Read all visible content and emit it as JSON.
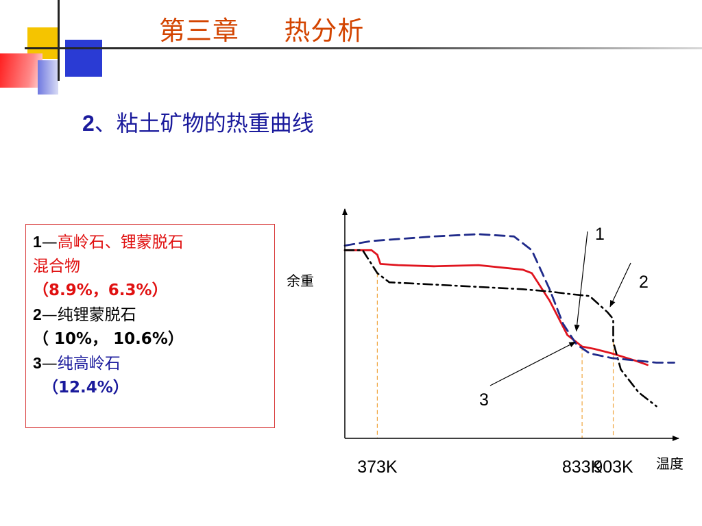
{
  "slide": {
    "title": "第三章     热分析",
    "section_number": "2",
    "section_title": "、粘土矿物的热重曲线"
  },
  "legend": [
    {
      "num": "1",
      "dash": "—",
      "name": "高岭石、锂蒙脱石",
      "name2": "混合物",
      "values": "（8.9%，6.3%）",
      "color": "#e01010"
    },
    {
      "num": "2",
      "dash": "—",
      "name": "纯锂蒙脱石",
      "values": "（ 10%， 10.6%）",
      "color": "#000000"
    },
    {
      "num": "3",
      "dash": "—",
      "name": "纯高岭石",
      "values": "（12.4%）",
      "color": "#1a1a9c"
    }
  ],
  "chart_data": {
    "type": "line",
    "ylabel": "余重",
    "xlabel": "温度",
    "x_ticks": [
      "373K",
      "833K",
      "903K"
    ],
    "x_tick_values": [
      373,
      833,
      903
    ],
    "xlim": [
      300,
      1050
    ],
    "ylim": [
      0,
      1
    ],
    "grid": false,
    "marked_temperatures": [
      373,
      833,
      903
    ],
    "annotations": [
      "1",
      "2",
      "3"
    ],
    "series": [
      {
        "name": "1",
        "color": "#e0141e",
        "style": "solid",
        "x": [
          300,
          360,
          373,
          380,
          420,
          500,
          600,
          700,
          720,
          760,
          800,
          820,
          833,
          860,
          900,
          950,
          980
        ],
        "y": [
          0.82,
          0.82,
          0.8,
          0.76,
          0.755,
          0.75,
          0.755,
          0.735,
          0.72,
          0.6,
          0.45,
          0.42,
          0.4,
          0.39,
          0.37,
          0.34,
          0.32
        ]
      },
      {
        "name": "2",
        "color": "#000000",
        "style": "dashdot",
        "x": [
          300,
          340,
          373,
          400,
          500,
          600,
          700,
          760,
          800,
          850,
          890,
          903,
          903,
          920,
          960,
          1000
        ],
        "y": [
          0.82,
          0.82,
          0.72,
          0.68,
          0.67,
          0.66,
          0.65,
          0.64,
          0.63,
          0.62,
          0.55,
          0.52,
          0.42,
          0.3,
          0.2,
          0.14
        ]
      },
      {
        "name": "3",
        "color": "#1f2a8a",
        "style": "dashed",
        "x": [
          300,
          360,
          500,
          600,
          680,
          720,
          760,
          790,
          820,
          850,
          900,
          950,
          1000,
          1040
        ],
        "y": [
          0.84,
          0.86,
          0.88,
          0.89,
          0.88,
          0.82,
          0.65,
          0.5,
          0.41,
          0.37,
          0.35,
          0.34,
          0.33,
          0.33
        ]
      }
    ]
  }
}
